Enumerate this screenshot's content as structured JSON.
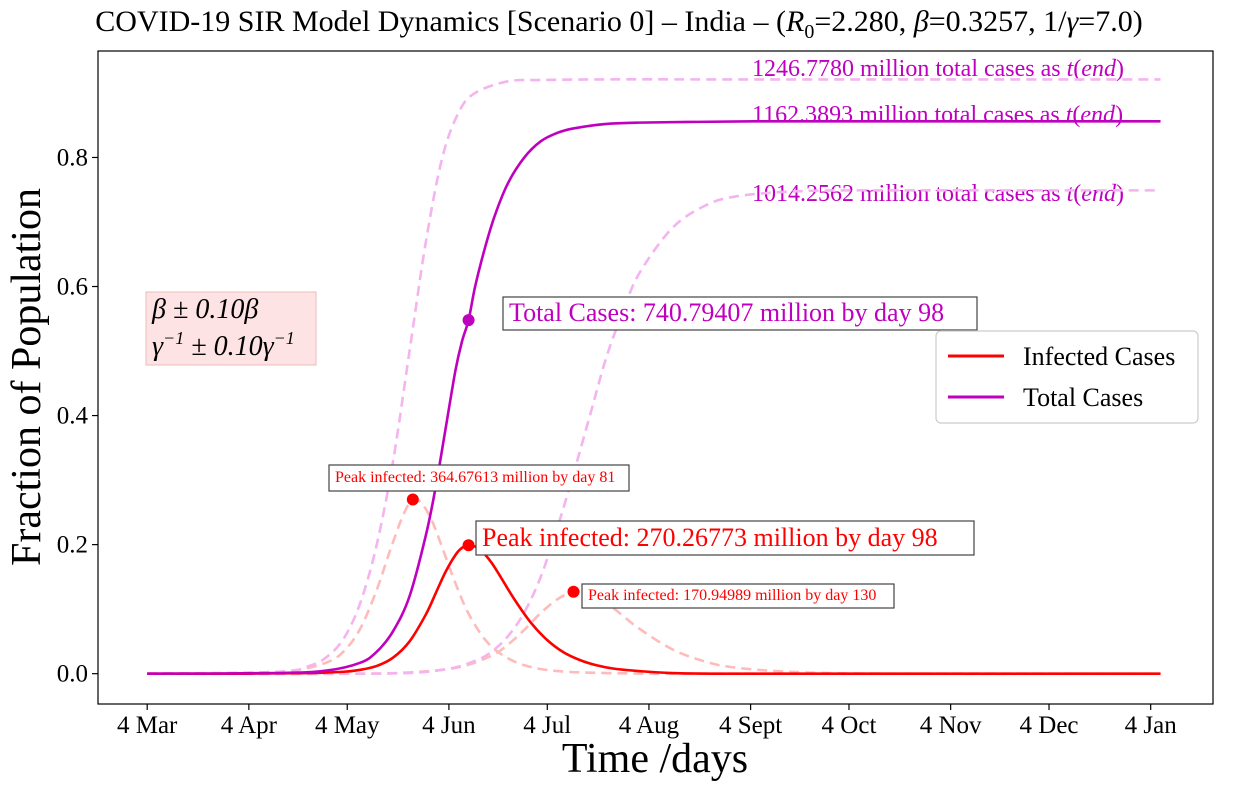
{
  "chart_data": {
    "type": "line",
    "title_parts": {
      "prefix": "COVID-19 SIR Model Dynamics [Scenario 0] – India – (",
      "r_symbol": "R",
      "r_sub": "0",
      "r_value": "=2.280, ",
      "beta_symbol": "β",
      "beta_value": "=0.3257, 1/",
      "gamma_symbol": "γ",
      "gamma_value": "=7.0)"
    },
    "xlabel": "Time /days",
    "ylabel": "Fraction of Population",
    "x_ticks": [
      "4 Mar",
      "4 Apr",
      "4 May",
      "4 Jun",
      "4 Jul",
      "4 Aug",
      "4 Sept",
      "4 Oct",
      "4 Nov",
      "4 Dec",
      "4 Jan"
    ],
    "x_tick_days": [
      0,
      31,
      61,
      92,
      122,
      153,
      184,
      214,
      245,
      275,
      306
    ],
    "xlim_days": [
      -15,
      325
    ],
    "y_ticks": [
      "0.0",
      "0.2",
      "0.4",
      "0.6",
      "0.8"
    ],
    "y_tick_values": [
      0,
      0.2,
      0.4,
      0.6,
      0.8
    ],
    "ylim": [
      -0.047,
      0.965
    ],
    "grid": false,
    "legend_position": "center-right",
    "colors": {
      "infected": "#ff0000",
      "total": "#bf00bf",
      "infected_band": "#ffbbbb",
      "total_band": "#f4b4ef",
      "box_fill": "#fde3e3"
    },
    "series": [
      {
        "name": "Infected Cases",
        "style": "solid",
        "color": "#ff0000",
        "x_days": [
          0,
          30,
          50,
          60,
          65,
          70,
          75,
          80,
          85,
          88,
          91,
          94,
          96,
          98,
          100,
          102,
          105,
          108,
          112,
          117,
          122,
          127,
          132,
          137,
          142,
          150,
          160,
          175,
          200,
          250,
          309
        ],
        "values": [
          0.0,
          0.0,
          0.001,
          0.003,
          0.006,
          0.012,
          0.025,
          0.05,
          0.092,
          0.125,
          0.158,
          0.184,
          0.195,
          0.199,
          0.197,
          0.19,
          0.172,
          0.148,
          0.115,
          0.079,
          0.052,
          0.033,
          0.021,
          0.013,
          0.008,
          0.004,
          0.001,
          0.0,
          0.0,
          0.0,
          0.0
        ]
      },
      {
        "name": "Total Cases",
        "style": "solid",
        "color": "#bf00bf",
        "x_days": [
          0,
          40,
          55,
          65,
          70,
          75,
          80,
          85,
          88,
          91,
          94,
          96,
          98,
          100,
          103,
          106,
          110,
          115,
          120,
          125,
          130,
          140,
          150,
          165,
          185,
          220,
          309
        ],
        "values": [
          0.0,
          0.001,
          0.005,
          0.017,
          0.034,
          0.066,
          0.12,
          0.215,
          0.29,
          0.38,
          0.47,
          0.515,
          0.548,
          0.6,
          0.66,
          0.71,
          0.76,
          0.8,
          0.825,
          0.838,
          0.845,
          0.852,
          0.854,
          0.855,
          0.856,
          0.856,
          0.856
        ]
      },
      {
        "style": "dashed",
        "color": "#ffbbbb",
        "x_days": [
          0,
          30,
          45,
          55,
          60,
          65,
          70,
          74,
          78,
          81,
          84,
          87,
          90,
          94,
          98,
          103,
          108,
          115,
          125,
          140,
          160,
          200,
          309
        ],
        "values": [
          0.0,
          0.001,
          0.005,
          0.018,
          0.035,
          0.07,
          0.13,
          0.19,
          0.245,
          0.27,
          0.262,
          0.235,
          0.195,
          0.14,
          0.093,
          0.053,
          0.03,
          0.013,
          0.004,
          0.001,
          0.0,
          0.0,
          0.0
        ]
      },
      {
        "style": "dashed",
        "color": "#ffbbbb",
        "x_days": [
          0,
          60,
          80,
          95,
          105,
          110,
          115,
          120,
          125,
          130,
          135,
          140,
          145,
          150,
          160,
          170,
          180,
          200,
          230,
          309
        ],
        "values": [
          0.0,
          0.0,
          0.002,
          0.01,
          0.028,
          0.045,
          0.068,
          0.094,
          0.115,
          0.127,
          0.124,
          0.11,
          0.09,
          0.07,
          0.038,
          0.019,
          0.009,
          0.002,
          0.0,
          0.0
        ]
      },
      {
        "style": "dashed",
        "color": "#f4b4ef",
        "x_days": [
          0,
          40,
          50,
          55,
          60,
          65,
          70,
          75,
          80,
          85,
          90,
          95,
          100,
          110,
          120,
          140,
          170,
          220,
          309
        ],
        "values": [
          0.0,
          0.003,
          0.013,
          0.027,
          0.055,
          0.11,
          0.2,
          0.33,
          0.5,
          0.67,
          0.8,
          0.87,
          0.9,
          0.918,
          0.92,
          0.921,
          0.921,
          0.921,
          0.921
        ]
      },
      {
        "style": "dashed",
        "color": "#f4b4ef",
        "x_days": [
          0,
          70,
          90,
          100,
          105,
          110,
          115,
          120,
          125,
          130,
          135,
          140,
          145,
          150,
          160,
          170,
          180,
          200,
          230,
          270,
          309
        ],
        "values": [
          0.0,
          0.0,
          0.006,
          0.02,
          0.034,
          0.058,
          0.095,
          0.15,
          0.225,
          0.31,
          0.4,
          0.49,
          0.56,
          0.62,
          0.69,
          0.725,
          0.74,
          0.748,
          0.749,
          0.749,
          0.749
        ]
      }
    ],
    "markers": [
      {
        "x_day": 98,
        "value": 0.548,
        "color": "#bf00bf"
      },
      {
        "x_day": 98,
        "value": 0.199,
        "color": "#ff0000"
      },
      {
        "x_day": 81,
        "value": 0.27,
        "color": "#ff0000"
      },
      {
        "x_day": 130,
        "value": 0.127,
        "color": "#ff0000"
      }
    ],
    "annotations": {
      "total_cases_main": "Total Cases: 740.79407 million by day 98",
      "peak_main": "Peak infected: 270.26773 million by day 98",
      "peak_early": "Peak infected: 364.67613 million by day 81",
      "peak_late": "Peak infected: 170.94989 million by day 130",
      "end_high_prefix": "1246.7780 million total cases as ",
      "end_mid_prefix": "1162.3893 million total cases as ",
      "end_low_prefix": "1014.2562 million total cases as ",
      "end_suffix_t": "t",
      "end_suffix_end": "end",
      "param_box_line1": "β ± 0.10β",
      "param_box_line2_gamma": "γ",
      "param_box_line2_exp": "−1",
      "param_box_line2_mid": " ± 0.10γ",
      "param_box_line2_exp2": "−1"
    },
    "legend": [
      "Infected Cases",
      "Total Cases"
    ]
  }
}
